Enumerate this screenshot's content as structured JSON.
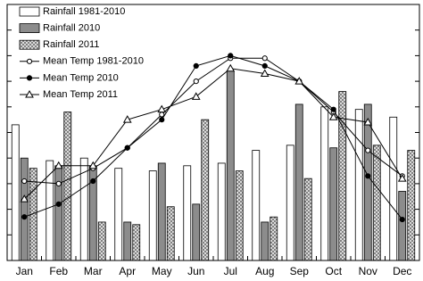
{
  "chart_data": {
    "type": "bar",
    "categories": [
      "Jan",
      "Feb",
      "Mar",
      "Apr",
      "May",
      "Jun",
      "Jul",
      "Aug",
      "Sep",
      "Oct",
      "Nov",
      "Dec"
    ],
    "ylim": [
      0,
      10
    ],
    "yticks": [
      0,
      1,
      2,
      3,
      4,
      5,
      6,
      7,
      8,
      9,
      10
    ],
    "legend": "upper left",
    "series": [
      {
        "name": "Rainfall 1981-2010",
        "type": "bar",
        "color": "#ffffff",
        "values": [
          5.3,
          3.9,
          4.0,
          3.6,
          3.5,
          3.7,
          3.8,
          4.3,
          4.5,
          6.0,
          5.9,
          5.6
        ]
      },
      {
        "name": "Rainfall 2010",
        "type": "bar",
        "color": "#8c8c8c",
        "values": [
          4.0,
          3.7,
          3.7,
          1.5,
          3.8,
          2.2,
          7.4,
          1.5,
          6.1,
          4.4,
          6.1,
          2.7
        ]
      },
      {
        "name": "Rainfall 2011",
        "type": "bar",
        "color": "#9a9a9a",
        "pattern": "hatch",
        "values": [
          3.6,
          5.8,
          1.5,
          1.4,
          2.1,
          5.5,
          3.5,
          1.7,
          3.2,
          6.6,
          4.5,
          4.3
        ]
      },
      {
        "name": "Mean Temp 1981-2010",
        "type": "line",
        "color": "#000000",
        "marker": "open-circle",
        "values": [
          3.1,
          3.0,
          3.6,
          4.4,
          5.7,
          7.0,
          7.9,
          7.9,
          7.0,
          5.8,
          4.3,
          3.3
        ]
      },
      {
        "name": "Mean Temp 2010",
        "type": "line",
        "color": "#000000",
        "marker": "filled-circle",
        "values": [
          1.7,
          2.2,
          3.1,
          4.4,
          5.5,
          7.6,
          8.0,
          7.6,
          7.0,
          5.9,
          3.3,
          1.6
        ]
      },
      {
        "name": "Mean Temp 2011",
        "type": "line",
        "color": "#000000",
        "marker": "open-triangle",
        "values": [
          2.4,
          3.7,
          3.7,
          5.5,
          5.9,
          6.4,
          7.5,
          7.3,
          7.0,
          5.6,
          5.4,
          3.2
        ]
      }
    ]
  }
}
